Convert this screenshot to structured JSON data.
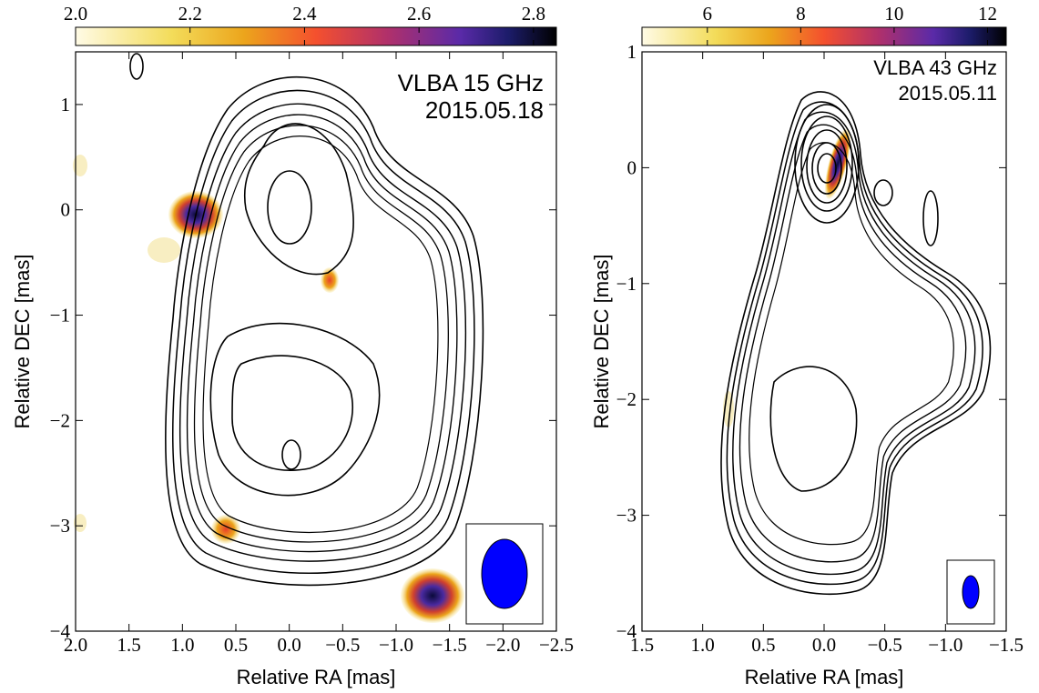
{
  "chart_data": [
    {
      "type": "contour",
      "text": [
        "VLBA 15 GHz",
        "2015.05.18"
      ],
      "xlabel": "Relative RA [mas]",
      "ylabel": "Relative DEC [mas]",
      "xlim": [
        2.0,
        -2.5
      ],
      "xticks": [
        {
          "value": 2.0,
          "label": "2.0"
        },
        1.5,
        {
          "value": 1.0,
          "label": "1.0"
        },
        0.5,
        {
          "value": 0.0,
          "label": "0.0"
        },
        {
          "value": -0.5,
          "label": "−0.5"
        },
        {
          "value": -1.0,
          "label": "−1.0"
        },
        {
          "value": -1.5,
          "label": "−1.5"
        },
        {
          "value": -2.0,
          "label": "−2.0"
        },
        {
          "value": -2.5,
          "label": "−2.5"
        }
      ],
      "ylim": [
        -4,
        1.5
      ],
      "yticks": [
        {
          "value": -4,
          "label": "−4"
        },
        {
          "value": -3,
          "label": "−3"
        },
        {
          "value": -2,
          "label": "−2"
        },
        {
          "value": -1,
          "label": "−1"
        },
        0,
        1
      ],
      "clim": [
        2.0,
        2.84
      ],
      "cticks": [
        {
          "value": 2.0,
          "label": "2.0"
        },
        2.2,
        2.4,
        2.6,
        2.8
      ]
    },
    {
      "type": "contour",
      "text": [
        "VLBA 43 GHz",
        "2015.05.11"
      ],
      "xlabel": "Relative RA [mas]",
      "ylabel": "Relative DEC [mas]",
      "xlim": [
        1.5,
        -1.5
      ],
      "xticks": [
        1.5,
        {
          "value": 1.0,
          "label": "1.0"
        },
        0.5,
        {
          "value": 0.0,
          "label": "0.0"
        },
        {
          "value": -0.5,
          "label": "−0.5"
        },
        {
          "value": -1.0,
          "label": "−1.0"
        },
        {
          "value": -1.5,
          "label": "−1.5"
        }
      ],
      "ylim": [
        -4,
        1
      ],
      "yticks": [
        {
          "value": -4,
          "label": "−4"
        },
        {
          "value": -3,
          "label": "−3"
        },
        {
          "value": -2,
          "label": "−2"
        },
        {
          "value": -1,
          "label": "−1"
        },
        0,
        1
      ],
      "clim": [
        4.6,
        12.4
      ],
      "cticks": [
        6,
        8,
        10,
        12
      ]
    }
  ]
}
